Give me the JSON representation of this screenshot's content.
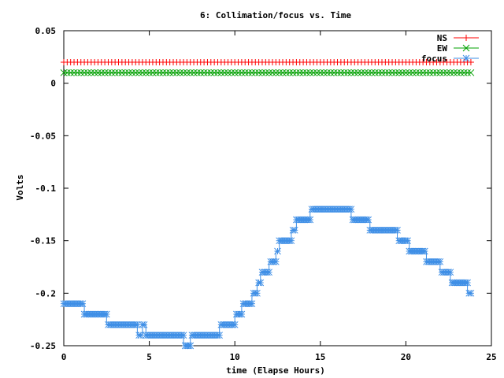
{
  "chart_data": {
    "type": "line",
    "title": "6: Collimation/focus vs. Time",
    "xlabel": "time (Elapse Hours)",
    "ylabel": "Volts",
    "xlim": [
      0,
      25
    ],
    "ylim": [
      -0.25,
      0.05
    ],
    "xticks": [
      0,
      5,
      10,
      15,
      20,
      25
    ],
    "xtick_labels": [
      "0",
      "5",
      "10",
      "15",
      "20",
      "25"
    ],
    "yticks": [
      0.05,
      0,
      -0.05,
      -0.1,
      -0.15,
      -0.2,
      -0.25
    ],
    "ytick_labels": [
      "0.05",
      "0",
      "-0.05",
      "-0.1",
      "-0.15",
      "-0.2",
      "-0.25"
    ],
    "grid": false,
    "legend_position": "top-right",
    "series": [
      {
        "name": "NS",
        "color": "#ff0000",
        "marker": "plus",
        "x": [
          0,
          23.8
        ],
        "y": [
          0.02,
          0.02
        ],
        "sample_every": 0.2
      },
      {
        "name": "EW",
        "color": "#00a000",
        "marker": "cross",
        "x": [
          0,
          23.8
        ],
        "y": [
          0.01,
          0.01
        ],
        "sample_every": 0.2
      },
      {
        "name": "focus",
        "color": "#3f8fe6",
        "marker": "star",
        "x": [
          0,
          1.2,
          1.2,
          2.5,
          2.5,
          4.3,
          4.3,
          4.6,
          4.6,
          4.8,
          4.8,
          5.4,
          5.4,
          7.0,
          7.0,
          7.4,
          7.4,
          9.1,
          9.1,
          10.0,
          10.0,
          10.4,
          10.4,
          11.0,
          11.0,
          11.3,
          11.3,
          11.5,
          11.5,
          12.0,
          12.0,
          12.4,
          12.4,
          12.6,
          12.6,
          13.3,
          13.3,
          13.6,
          13.6,
          14.4,
          14.4,
          16.8,
          16.8,
          17.9,
          17.9,
          19.5,
          19.5,
          20.2,
          20.2,
          21.2,
          21.2,
          22.0,
          22.0,
          22.6,
          22.6,
          23.6,
          23.6,
          23.8
        ],
        "y": [
          -0.21,
          -0.21,
          -0.22,
          -0.22,
          -0.23,
          -0.23,
          -0.24,
          -0.24,
          -0.23,
          -0.23,
          -0.24,
          -0.24,
          -0.24,
          -0.24,
          -0.25,
          -0.25,
          -0.24,
          -0.24,
          -0.23,
          -0.23,
          -0.22,
          -0.22,
          -0.21,
          -0.21,
          -0.2,
          -0.2,
          -0.19,
          -0.19,
          -0.18,
          -0.18,
          -0.17,
          -0.17,
          -0.16,
          -0.16,
          -0.15,
          -0.15,
          -0.14,
          -0.14,
          -0.13,
          -0.13,
          -0.12,
          -0.12,
          -0.13,
          -0.13,
          -0.14,
          -0.14,
          -0.15,
          -0.15,
          -0.16,
          -0.16,
          -0.17,
          -0.17,
          -0.18,
          -0.18,
          -0.19,
          -0.19,
          -0.2,
          -0.2
        ],
        "sample_every": 0.1
      }
    ]
  }
}
